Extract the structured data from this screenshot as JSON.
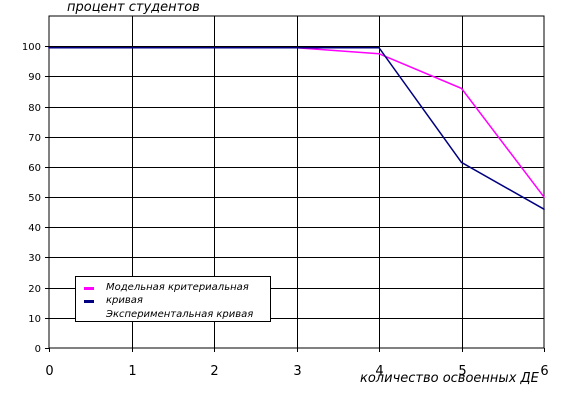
{
  "chart_data": {
    "type": "line",
    "x": [
      0,
      1,
      2,
      3,
      4,
      5,
      6
    ],
    "ylabel": "процент студентов",
    "xlabel": "количество освоенных ДЕ",
    "xlim": [
      0,
      6
    ],
    "ylim": [
      0,
      110
    ],
    "y_ticks": [
      0,
      10,
      20,
      30,
      40,
      50,
      60,
      70,
      80,
      90,
      100
    ],
    "x_ticks": [
      0,
      1,
      2,
      3,
      4,
      5,
      6
    ],
    "grid": true,
    "legend_position": "bottom-left",
    "series": [
      {
        "name": "Модельная критериальная кривая",
        "color": "#ff00ff",
        "values": [
          99.5,
          99.5,
          99.5,
          99.5,
          97.5,
          86,
          50
        ]
      },
      {
        "name": "Экспериментальная кривая",
        "color": "#000080",
        "values": [
          99.5,
          99.5,
          99.5,
          99.5,
          99.5,
          61.5,
          46
        ]
      }
    ]
  }
}
